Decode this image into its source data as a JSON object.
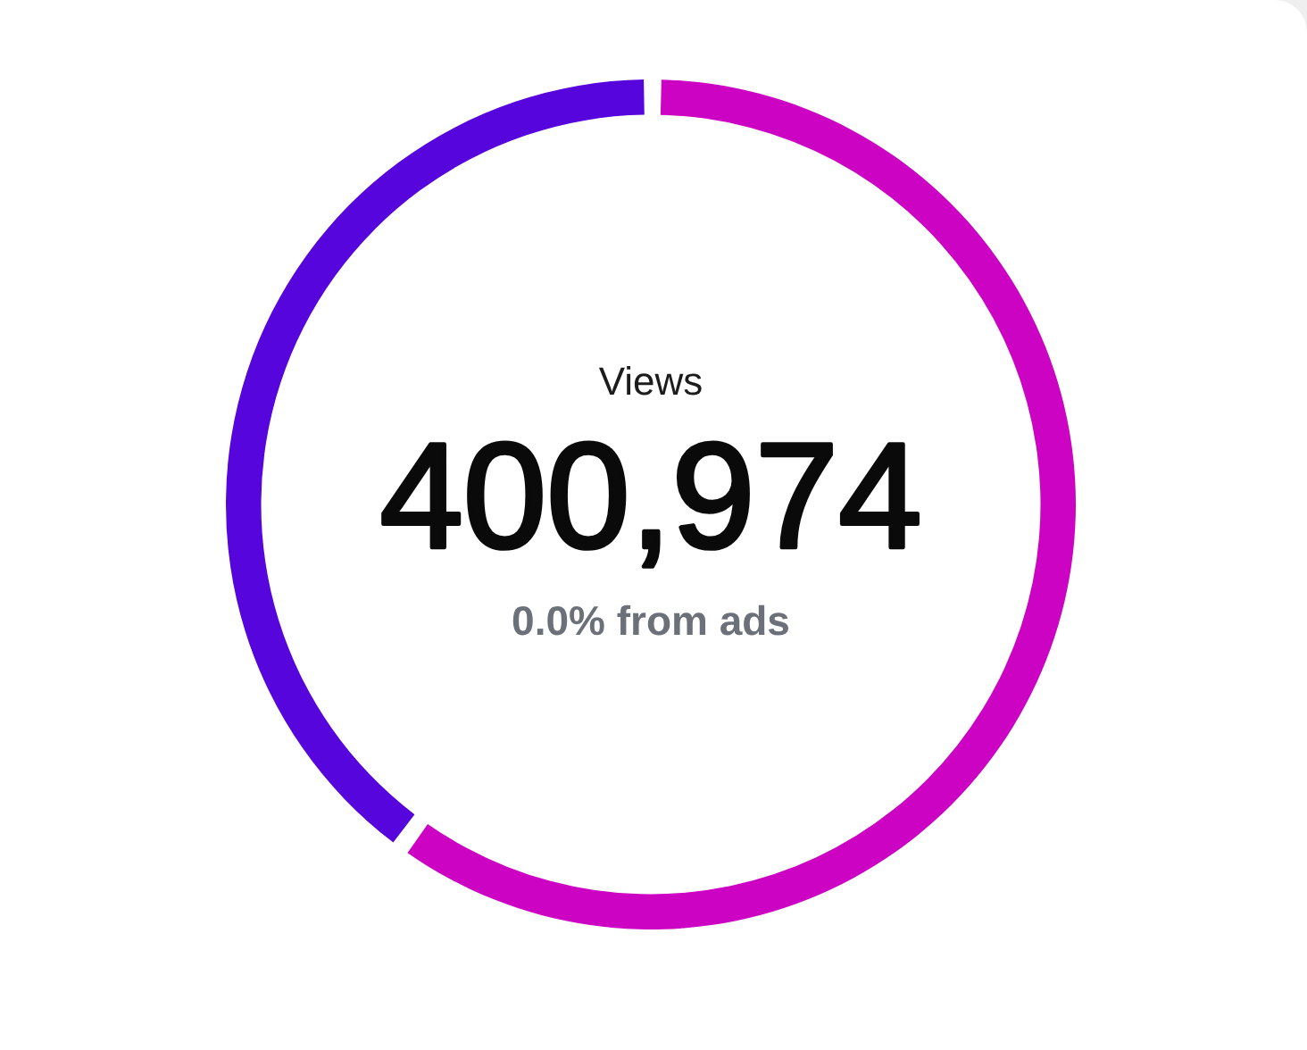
{
  "chart_data": {
    "type": "donut",
    "title": "Views",
    "annotations": [
      "400,974",
      "0.0% from ads"
    ],
    "categories": [
      null,
      null
    ],
    "values": [
      60.1,
      39.9
    ],
    "colors": [
      "#cc03c2",
      "#5606dc"
    ],
    "legend": false
  }
}
